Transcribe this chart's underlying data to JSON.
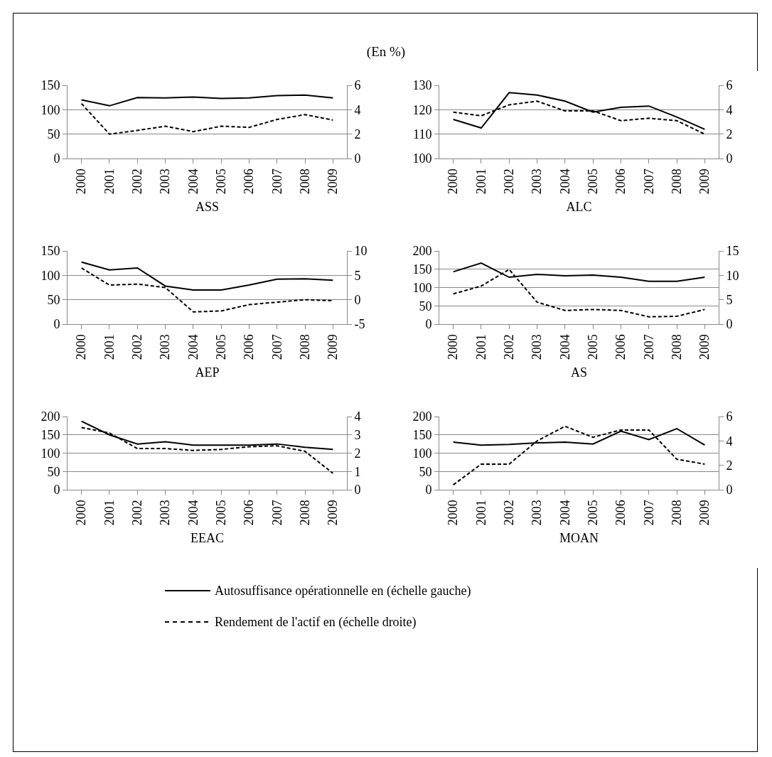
{
  "chart_data": [
    {
      "type": "line",
      "title": "(En %)",
      "xlabel": "ASS",
      "categories": [
        "2000",
        "2001",
        "2002",
        "2003",
        "2004",
        "2005",
        "2006",
        "2007",
        "2008",
        "2009"
      ],
      "ylim": [
        0,
        150
      ],
      "yticks": [
        0,
        50,
        100,
        150
      ],
      "y2lim": [
        0,
        6
      ],
      "y2ticks": [
        0,
        2,
        4,
        6
      ],
      "grid": "y",
      "legend": "bottom",
      "series": [
        {
          "name": "Autosuffisance opérationnelle en (échelle gauche)",
          "color": "#000000",
          "line_style": "solid",
          "values": [
            120,
            108,
            125,
            124,
            126,
            123,
            124,
            129,
            130,
            124
          ]
        },
        {
          "name": "Rendement de l'actif en (échelle droite)",
          "color": "#000000",
          "line_style": "dashed",
          "axis": "y2",
          "values": [
            4.5,
            2.0,
            2.3,
            2.65,
            2.2,
            2.65,
            2.55,
            3.2,
            3.6,
            3.15
          ]
        }
      ]
    },
    {
      "type": "line",
      "xlabel": "ALC",
      "categories": [
        "2000",
        "2001",
        "2002",
        "2003",
        "2004",
        "2005",
        "2006",
        "2007",
        "2008",
        "2009"
      ],
      "ylim": [
        100,
        130
      ],
      "yticks": [
        100,
        110,
        120,
        130
      ],
      "y2lim": [
        0,
        6
      ],
      "y2ticks": [
        0,
        2,
        4,
        6
      ],
      "grid": "y",
      "series": [
        {
          "color": "#000000",
          "line_style": "solid",
          "values": [
            116,
            112.5,
            127,
            126,
            123.5,
            119,
            121,
            121.5,
            117,
            112
          ]
        },
        {
          "color": "#000000",
          "line_style": "dashed",
          "axis": "y2",
          "values": [
            3.8,
            3.5,
            4.4,
            4.7,
            3.9,
            3.9,
            3.1,
            3.3,
            3.1,
            2.0
          ]
        }
      ]
    },
    {
      "type": "line",
      "xlabel": "AEP",
      "categories": [
        "2000",
        "2001",
        "2002",
        "2003",
        "2004",
        "2005",
        "2006",
        "2007",
        "2008",
        "2009"
      ],
      "ylim": [
        0,
        150
      ],
      "yticks": [
        0,
        50,
        100,
        150
      ],
      "y2lim": [
        -5,
        10
      ],
      "y2ticks": [
        -5,
        0,
        5,
        10
      ],
      "grid": "y",
      "series": [
        {
          "color": "#000000",
          "line_style": "solid",
          "values": [
            127,
            111,
            115,
            78,
            70,
            70,
            80,
            92,
            93,
            90
          ]
        },
        {
          "color": "#000000",
          "line_style": "dashed",
          "axis": "y2",
          "values": [
            6.5,
            3.0,
            3.2,
            2.5,
            -2.5,
            -2.3,
            -1.0,
            -0.5,
            0,
            -0.2
          ]
        }
      ]
    },
    {
      "type": "line",
      "xlabel": "AS",
      "categories": [
        "2000",
        "2001",
        "2002",
        "2003",
        "2004",
        "2005",
        "2006",
        "2007",
        "2008",
        "2009"
      ],
      "ylim": [
        0,
        200
      ],
      "yticks": [
        0,
        50,
        100,
        150,
        200
      ],
      "y2lim": [
        0,
        15
      ],
      "y2ticks": [
        0,
        5,
        10,
        15
      ],
      "grid": "y",
      "series": [
        {
          "color": "#000000",
          "line_style": "solid",
          "values": [
            143,
            167,
            128,
            136,
            132,
            134,
            128,
            117,
            117,
            128
          ]
        },
        {
          "color": "#000000",
          "line_style": "dashed",
          "axis": "y2",
          "values": [
            6.2,
            7.8,
            11.2,
            4.5,
            2.8,
            3.0,
            2.8,
            1.5,
            1.6,
            3.0
          ]
        }
      ]
    },
    {
      "type": "line",
      "xlabel": "EEAC",
      "categories": [
        "2000",
        "2001",
        "2002",
        "2003",
        "2004",
        "2005",
        "2006",
        "2007",
        "2008",
        "2009"
      ],
      "ylim": [
        0,
        200
      ],
      "yticks": [
        0,
        50,
        100,
        150,
        200
      ],
      "y2lim": [
        0,
        4
      ],
      "y2ticks": [
        0,
        1,
        2,
        3,
        4
      ],
      "grid": "y",
      "series": [
        {
          "color": "#000000",
          "line_style": "solid",
          "values": [
            187,
            150,
            125,
            131,
            122,
            122,
            122,
            125,
            116,
            110
          ]
        },
        {
          "color": "#000000",
          "line_style": "dashed",
          "axis": "y2",
          "values": [
            3.4,
            3.1,
            2.25,
            2.25,
            2.15,
            2.2,
            2.35,
            2.4,
            2.1,
            0.9
          ]
        }
      ]
    },
    {
      "type": "line",
      "xlabel": "MOAN",
      "categories": [
        "2000",
        "2001",
        "2002",
        "2003",
        "2004",
        "2005",
        "2006",
        "2007",
        "2008",
        "2009"
      ],
      "ylim": [
        0,
        200
      ],
      "yticks": [
        0,
        50,
        100,
        150,
        200
      ],
      "y2lim": [
        0,
        6
      ],
      "y2ticks": [
        0,
        2,
        4,
        6
      ],
      "grid": "y",
      "series": [
        {
          "color": "#000000",
          "line_style": "solid",
          "values": [
            130,
            122,
            124,
            128,
            130,
            125,
            160,
            137,
            167,
            122
          ]
        },
        {
          "color": "#000000",
          "line_style": "dashed",
          "axis": "y2",
          "values": [
            0.4,
            2.1,
            2.1,
            4.0,
            5.2,
            4.3,
            4.9,
            4.9,
            2.5,
            2.1
          ]
        }
      ]
    }
  ]
}
